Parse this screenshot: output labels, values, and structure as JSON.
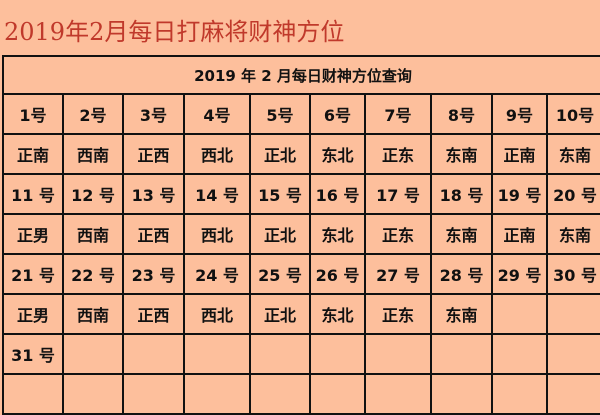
{
  "page_title": "2019年2月每日打麻将财神方位",
  "table": {
    "header": "2019 年 2 月每日财神方位查询",
    "rows": [
      [
        "1号",
        "2号",
        "3号",
        "4号",
        "5号",
        "6号",
        "7号",
        "8号",
        "9号",
        "10号"
      ],
      [
        "正南",
        "西南",
        "正西",
        "西北",
        "正北",
        "东北",
        "正东",
        "东南",
        "正南",
        "东南"
      ],
      [
        "11 号",
        "12 号",
        "13 号",
        "14 号",
        "15 号",
        "16 号",
        "17 号",
        "18 号",
        "19 号",
        "20 号"
      ],
      [
        "正男",
        "西南",
        "正西",
        "西北",
        "正北",
        "东北",
        "正东",
        "东南",
        "正南",
        "东南"
      ],
      [
        "21 号",
        "22 号",
        "23 号",
        "24 号",
        "25 号",
        "26 号",
        "27 号",
        "28 号",
        "29 号",
        "30 号"
      ],
      [
        "正男",
        "西南",
        "正西",
        "西北",
        "正北",
        "东北",
        "正东",
        "东南",
        "",
        ""
      ],
      [
        "31 号",
        "",
        "",
        "",
        "",
        "",
        "",
        "",
        "",
        ""
      ],
      [
        "",
        "",
        "",
        "",
        "",
        "",
        "",
        "",
        "",
        ""
      ]
    ]
  },
  "colors": {
    "background": "#fdbf9c",
    "title": "#c0392b",
    "grid": "#111111"
  }
}
